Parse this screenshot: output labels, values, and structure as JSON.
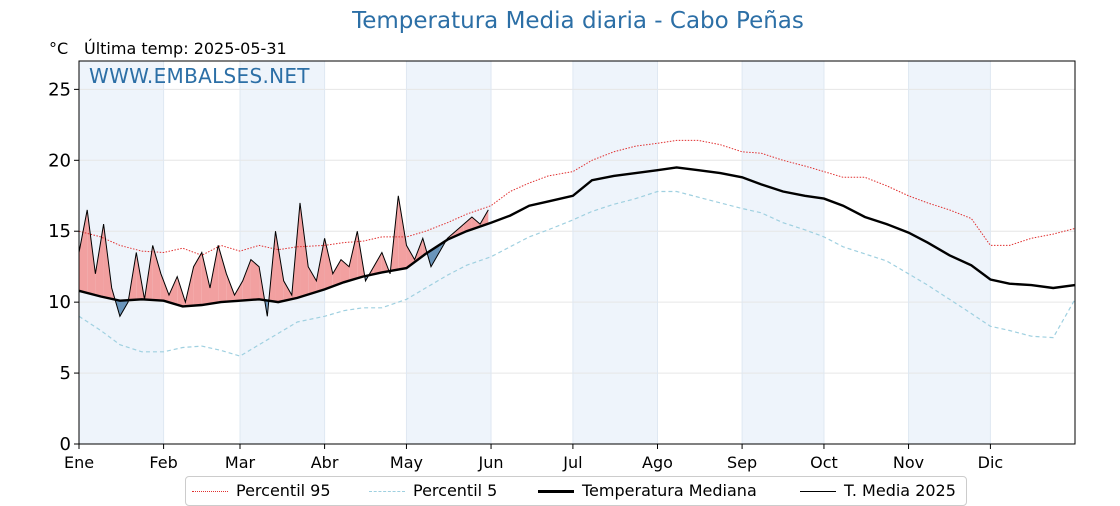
{
  "title": "Temperatura Media diaria - Cabo Peñas",
  "unit_label": "°C",
  "last_temp_text": "Última temp: 2025-05-31",
  "watermark": "WWW.EMBALSES.NET",
  "colors": {
    "title": "#2c6fa6",
    "p95": "#e03030",
    "p5": "#9fd0e0",
    "median": "#000000",
    "t2025": "#000000",
    "fill_above": "#f2a0a0",
    "fill_below": "#6a95bb",
    "band": "#eef4fb"
  },
  "legend": [
    {
      "key": "p95",
      "label": "Percentil 95",
      "style": "dotted-red"
    },
    {
      "key": "p5",
      "label": "Percentil 5",
      "style": "dashed-lightblue"
    },
    {
      "key": "median",
      "label": "Temperatura Mediana",
      "style": "thick-black"
    },
    {
      "key": "t2025",
      "label": "T. Media 2025",
      "style": "thin-black"
    }
  ],
  "chart_data": {
    "type": "line",
    "title": "Temperatura Media diaria - Cabo Peñas",
    "ylabel": "°C",
    "xlabel": "",
    "ylim": [
      0,
      27
    ],
    "yticks": [
      0,
      5,
      10,
      15,
      20,
      25
    ],
    "xlim": [
      0,
      365
    ],
    "month_ticks": [
      {
        "label": "Ene",
        "day": 0
      },
      {
        "label": "Feb",
        "day": 31
      },
      {
        "label": "Mar",
        "day": 59
      },
      {
        "label": "Abr",
        "day": 90
      },
      {
        "label": "May",
        "day": 120
      },
      {
        "label": "Jun",
        "day": 151
      },
      {
        "label": "Jul",
        "day": 181
      },
      {
        "label": "Ago",
        "day": 212
      },
      {
        "label": "Sep",
        "day": 243
      },
      {
        "label": "Oct",
        "day": 273
      },
      {
        "label": "Nov",
        "day": 304
      },
      {
        "label": "Dic",
        "day": 334
      }
    ],
    "grid": true,
    "legend_position": "bottom",
    "series": [
      {
        "name": "Percentil 95",
        "x": [
          0,
          8,
          15,
          23,
          31,
          38,
          45,
          52,
          59,
          66,
          73,
          80,
          90,
          97,
          104,
          111,
          120,
          127,
          135,
          142,
          151,
          158,
          165,
          172,
          181,
          188,
          196,
          204,
          212,
          219,
          227,
          235,
          243,
          250,
          258,
          266,
          273,
          280,
          288,
          296,
          304,
          311,
          319,
          327,
          334,
          341,
          349,
          357,
          365
        ],
        "values": [
          15.0,
          14.6,
          14.0,
          13.6,
          13.5,
          13.8,
          13.3,
          14.0,
          13.6,
          14.0,
          13.7,
          13.9,
          14.0,
          14.2,
          14.3,
          14.6,
          14.6,
          15.0,
          15.6,
          16.2,
          16.8,
          17.8,
          18.4,
          18.9,
          19.2,
          20.0,
          20.6,
          21.0,
          21.2,
          21.4,
          21.4,
          21.1,
          20.6,
          20.5,
          20.0,
          19.6,
          19.2,
          18.8,
          18.8,
          18.2,
          17.5,
          17.0,
          16.5,
          15.9,
          14.0,
          14.0,
          14.5,
          14.8,
          15.2
        ]
      },
      {
        "name": "Percentil 5",
        "x": [
          0,
          8,
          15,
          23,
          31,
          38,
          45,
          52,
          59,
          66,
          73,
          80,
          90,
          97,
          104,
          111,
          120,
          127,
          135,
          142,
          151,
          158,
          165,
          172,
          181,
          188,
          196,
          204,
          212,
          219,
          227,
          235,
          243,
          250,
          258,
          266,
          273,
          280,
          288,
          296,
          304,
          311,
          319,
          327,
          334,
          341,
          349,
          357,
          365
        ],
        "values": [
          9.0,
          8.0,
          7.0,
          6.5,
          6.5,
          6.8,
          6.9,
          6.6,
          6.2,
          7.0,
          7.8,
          8.6,
          9.0,
          9.4,
          9.6,
          9.6,
          10.2,
          11.0,
          11.9,
          12.6,
          13.2,
          13.9,
          14.6,
          15.1,
          15.8,
          16.4,
          16.9,
          17.3,
          17.8,
          17.8,
          17.4,
          17.0,
          16.6,
          16.3,
          15.6,
          15.1,
          14.6,
          13.9,
          13.4,
          12.9,
          12.0,
          11.2,
          10.2,
          9.2,
          8.3,
          8.0,
          7.6,
          7.5,
          10.2
        ]
      },
      {
        "name": "Temperatura Mediana",
        "x": [
          0,
          8,
          15,
          23,
          31,
          38,
          45,
          52,
          59,
          66,
          73,
          80,
          90,
          97,
          104,
          111,
          120,
          127,
          135,
          142,
          151,
          158,
          165,
          172,
          181,
          188,
          196,
          204,
          212,
          219,
          227,
          235,
          243,
          250,
          258,
          266,
          273,
          280,
          288,
          296,
          304,
          311,
          319,
          327,
          334,
          341,
          349,
          357,
          365
        ],
        "values": [
          10.8,
          10.4,
          10.1,
          10.2,
          10.1,
          9.7,
          9.8,
          10.0,
          10.1,
          10.2,
          10.0,
          10.3,
          10.9,
          11.4,
          11.8,
          12.1,
          12.4,
          13.4,
          14.4,
          15.0,
          15.6,
          16.1,
          16.8,
          17.1,
          17.5,
          18.6,
          18.9,
          19.1,
          19.3,
          19.5,
          19.3,
          19.1,
          18.8,
          18.3,
          17.8,
          17.5,
          17.3,
          16.8,
          16.0,
          15.5,
          14.9,
          14.2,
          13.3,
          12.6,
          11.6,
          11.3,
          11.2,
          11.0,
          11.2
        ]
      },
      {
        "name": "T. Media 2025",
        "x": [
          0,
          3,
          6,
          9,
          12,
          15,
          18,
          21,
          24,
          27,
          30,
          33,
          36,
          39,
          42,
          45,
          48,
          51,
          54,
          57,
          60,
          63,
          66,
          69,
          72,
          75,
          78,
          81,
          84,
          87,
          90,
          93,
          96,
          99,
          102,
          105,
          108,
          111,
          114,
          117,
          120,
          123,
          126,
          129,
          132,
          135,
          138,
          141,
          144,
          147,
          150
        ],
        "values": [
          13.5,
          16.5,
          12.0,
          15.5,
          11.0,
          9.0,
          10.0,
          13.5,
          10.2,
          14.0,
          12.0,
          10.5,
          11.8,
          10.0,
          12.5,
          13.5,
          11.0,
          14.0,
          12.0,
          10.5,
          11.5,
          13.0,
          12.5,
          9.0,
          15.0,
          11.5,
          10.5,
          17.0,
          12.5,
          11.5,
          14.5,
          12.0,
          13.0,
          12.5,
          15.0,
          11.5,
          12.5,
          13.5,
          12.0,
          17.5,
          14.0,
          13.0,
          14.5,
          12.5,
          13.5,
          14.5,
          15.0,
          15.5,
          16.0,
          15.5,
          16.5
        ]
      }
    ],
    "fill_regions": [
      {
        "type": "above_median",
        "color": "#f2a0a0"
      },
      {
        "type": "below_median",
        "color": "#6a95bb"
      }
    ]
  }
}
